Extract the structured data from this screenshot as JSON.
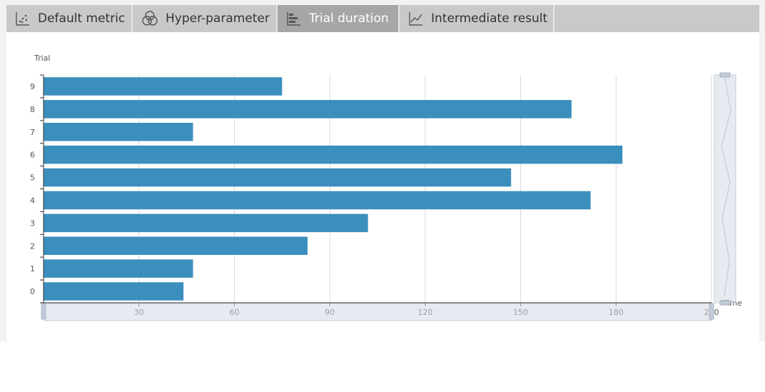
{
  "tabs": [
    {
      "label": "Default metric",
      "icon": "scatter-chart-icon",
      "active": false
    },
    {
      "label": "Hyper-parameter",
      "icon": "venn-circles-icon",
      "active": false
    },
    {
      "label": "Trial duration",
      "icon": "bar-chart-icon",
      "active": true
    },
    {
      "label": "Intermediate result",
      "icon": "line-chart-icon",
      "active": false
    }
  ],
  "colors": {
    "bar": "#3b8fbd",
    "tab_bg": "#c9c9c9",
    "tab_active": "#a6a6a6",
    "grid": "#d9d9d9",
    "slider": "#d4dbe6"
  },
  "chart_data": {
    "type": "bar",
    "orientation": "horizontal",
    "ylabel": "Trial",
    "xlabel": "Time",
    "categories": [
      "0",
      "1",
      "2",
      "3",
      "4",
      "5",
      "6",
      "7",
      "8",
      "9"
    ],
    "values": [
      44,
      47,
      83,
      102,
      172,
      147,
      182,
      47,
      166,
      75
    ],
    "xlim": [
      0,
      210
    ],
    "xticks": [
      "0",
      "30",
      "60",
      "90",
      "120",
      "150",
      "180",
      "210"
    ],
    "grid": true,
    "data_zoom": {
      "x": [
        0,
        100
      ],
      "y": [
        0,
        100
      ]
    }
  }
}
